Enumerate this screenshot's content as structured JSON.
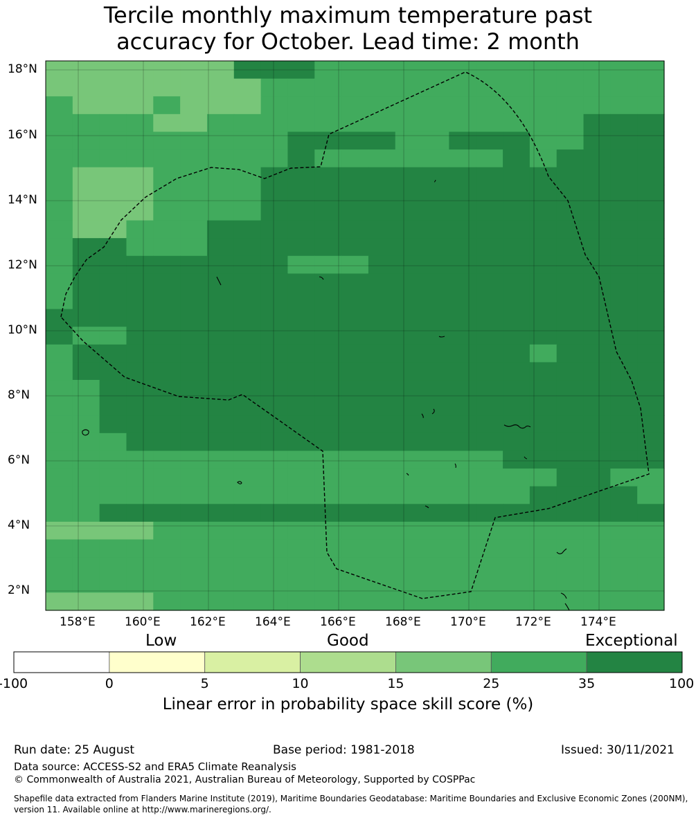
{
  "title_line1": "Tercile monthly maximum temperature past",
  "title_line2": "accuracy for October. Lead time: 2 month",
  "map": {
    "lon_ticks": [
      "158°E",
      "160°E",
      "162°E",
      "164°E",
      "166°E",
      "168°E",
      "170°E",
      "172°E",
      "174°E"
    ],
    "lat_ticks": [
      "18°N",
      "16°N",
      "14°N",
      "12°N",
      "10°N",
      "8°N",
      "6°N",
      "4°N",
      "2°N"
    ],
    "colors": {
      "c3": "#addf8e",
      "c4": "#78c679",
      "c5": "#41ab5d",
      "c6": "#238443"
    },
    "grid": [
      "44444446665555555555555",
      "44444444555555555555555",
      "54445444555555555555555",
      "55554455555555555555666",
      "55555555566665566655666",
      "55555555565555555656666",
      "54445555666666666666666",
      "54445555666666666666666",
      "54445555666666666666666",
      "54455566666666666666666",
      "56655566666666666666666",
      "56666666655566666666666",
      "56666666666666666666666",
      "56666666666666666666666",
      "66666666666666666666666",
      "65566666666666666666666",
      "56666666666666666656666",
      "56666666666666666666666",
      "55666666666666666666666",
      "55666666666666666666666",
      "55666666666666666666666",
      "55566666666666666666666",
      "55555555555555555666666",
      "55555555555555555556655",
      "55555555555555555566665",
      "55666666666666666666666",
      "44445555555555555555555",
      "55555555555555555555555",
      "55555555555555555555555",
      "55555555555555555555555",
      "44445555555555555555555"
    ]
  },
  "colorbar": {
    "labels": [
      "Low",
      "Good",
      "Exceptional"
    ],
    "ticks": [
      "-100",
      "0",
      "5",
      "10",
      "15",
      "25",
      "35",
      "100"
    ],
    "colors": [
      "#ffffff",
      "#ffffcc",
      "#d9f0a3",
      "#addd8e",
      "#78c679",
      "#41ab5d",
      "#238443"
    ],
    "title": "Linear error in probability space skill score (%)"
  },
  "footer": {
    "run_date": "Run date: 25 August",
    "base_period": "Base period: 1981-2018",
    "issued": "Issued: 30/11/2021",
    "data_source": "Data source: ACCESS-S2 and ERA5 Climate Reanalysis",
    "copyright": "© Commonwealth of Australia 2021, Australian Bureau of Meteorology, Supported by COSPPac",
    "shapefile_line1": "Shapefile data extracted from Flanders Marine Institute (2019), Maritime Boundaries Geodatabase: Maritime Boundaries and Exclusive Economic Zones (200NM),",
    "shapefile_line2": "version 11. Available online at http://www.marineregions.org/."
  }
}
